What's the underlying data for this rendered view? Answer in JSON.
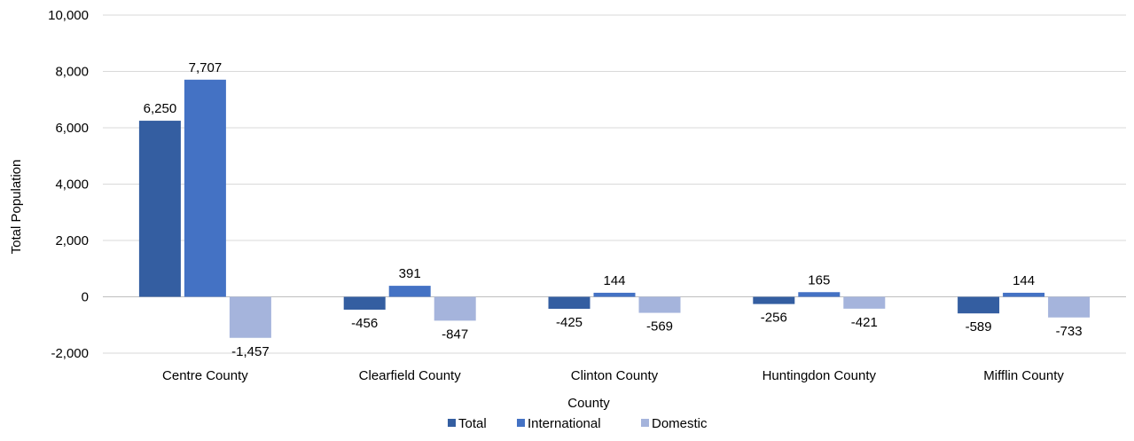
{
  "chart_data": {
    "type": "bar",
    "categories": [
      "Centre County",
      "Clearfield County",
      "Clinton County",
      "Huntingdon County",
      "Mifflin County"
    ],
    "series": [
      {
        "name": "Total",
        "values": [
          6250,
          -456,
          -425,
          -256,
          -589
        ],
        "color": "#345ea1"
      },
      {
        "name": "International",
        "values": [
          7707,
          391,
          144,
          165,
          144
        ],
        "color": "#4472c4"
      },
      {
        "name": "Domestic",
        "values": [
          -1457,
          -847,
          -569,
          -421,
          -733
        ],
        "color": "#a5b4dc"
      }
    ],
    "data_labels": [
      [
        "6,250",
        "-456",
        "-425",
        "-256",
        "-589"
      ],
      [
        "7,707",
        "391",
        "144",
        "165",
        "144"
      ],
      [
        "-1,457",
        "-847",
        "-569",
        "-421",
        "-733"
      ]
    ],
    "yticks": [
      -2000,
      0,
      2000,
      4000,
      6000,
      8000,
      10000
    ],
    "ytick_labels": [
      "-2,000",
      "0",
      "2,000",
      "4,000",
      "6,000",
      "8,000",
      "10,000"
    ],
    "ylim": [
      -2000,
      10000
    ],
    "xlabel": "County",
    "ylabel": "Total Population",
    "grid": true,
    "legend_position": "bottom"
  }
}
